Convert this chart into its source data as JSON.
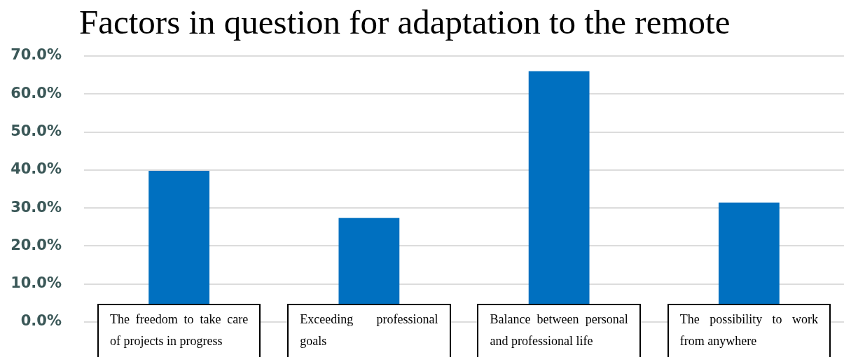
{
  "chart_data": {
    "type": "bar",
    "title": "Factors in question for adaptation to the remote",
    "categories": [
      "The freedom to take care of projects in progress",
      "Exceeding professional goals",
      "Balance between personal and professional life",
      "The possibility to work from anywhere"
    ],
    "values": [
      39.8,
      27.4,
      66.0,
      31.4
    ],
    "color": "#0070c0",
    "ylim": [
      0,
      70
    ],
    "yticks": [
      {
        "value": 0,
        "label": "0.0%"
      },
      {
        "value": 10,
        "label": "10.0%"
      },
      {
        "value": 20,
        "label": "20.0%"
      },
      {
        "value": 30,
        "label": "30.0%"
      },
      {
        "value": 40,
        "label": "40.0%"
      },
      {
        "value": 50,
        "label": "50.0%"
      },
      {
        "value": 60,
        "label": "60.0%"
      },
      {
        "value": 70,
        "label": "70.0%"
      }
    ],
    "grid": "y"
  }
}
